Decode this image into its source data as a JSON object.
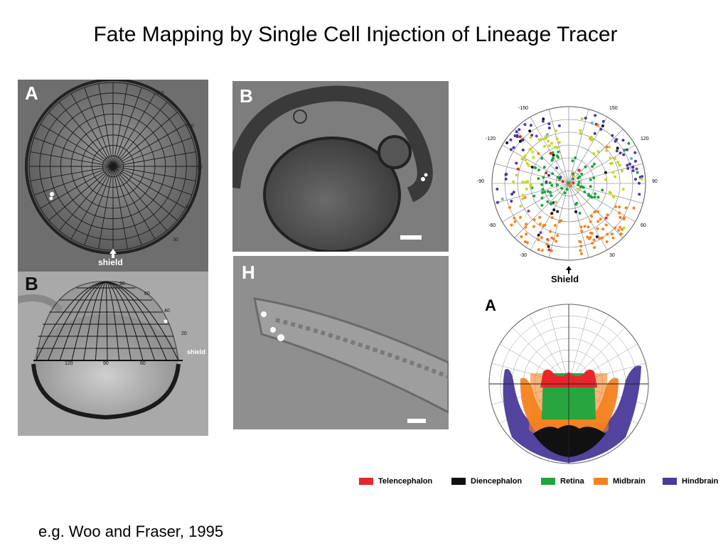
{
  "title": "Fate Mapping by Single Cell Injection of Lineage Tracer",
  "citation": "e.g. Woo and Fraser, 1995",
  "panels": {
    "top_left": {
      "label": "A",
      "annotation": "shield",
      "grid_labels": [
        "150",
        "120",
        "90",
        "60",
        "30"
      ]
    },
    "bottom_left": {
      "label": "B",
      "annotation": "shield",
      "grid_labels": [
        "90",
        "60",
        "40",
        "20"
      ],
      "equator_labels": [
        "120",
        "90",
        "60"
      ]
    },
    "embryo_head": {
      "label": "B"
    },
    "embryo_tail": {
      "label": "H"
    },
    "polar_map": {
      "annotation": "Shield",
      "angle_labels": [
        "-150",
        "-120",
        "-90",
        "-60",
        "-30",
        "150",
        "120",
        "90",
        "60",
        "30"
      ]
    },
    "fate_map": {
      "label": "A"
    }
  },
  "legend": [
    {
      "label": "Telencephalon",
      "color": "#e8262b"
    },
    {
      "label": "Diencephalon",
      "color": "#111111"
    },
    {
      "label": "Retina",
      "color": "#1ea43c"
    },
    {
      "label": "Midbrain",
      "color": "#f58220"
    },
    {
      "label": "Hindbrain",
      "color": "#4a3a9a"
    }
  ]
}
